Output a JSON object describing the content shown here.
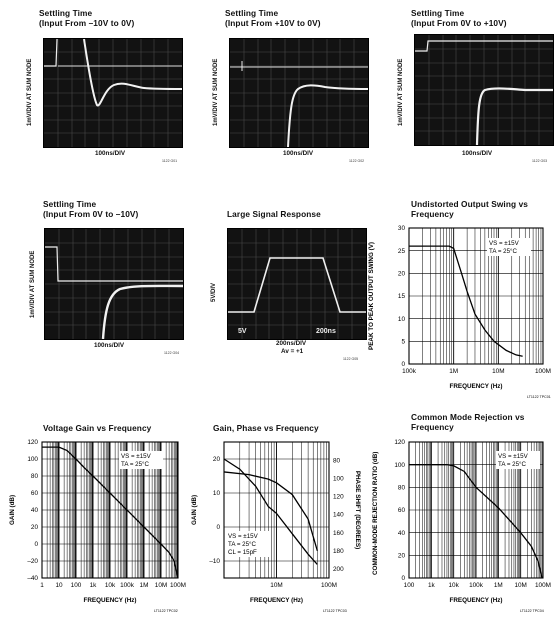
{
  "scopes": [
    {
      "title1": "Settling Time",
      "title2": "(Input From –10V to 0V)",
      "ylabel": "1mV/DIV AT SUM NODE",
      "xlabel": "100ns/DIV",
      "code": "1122 G01"
    },
    {
      "title1": "Settling Time",
      "title2": "(Input From +10V to 0V)",
      "ylabel": "1mV/DIV AT SUM NODE",
      "xlabel": "100ns/DIV",
      "code": "1122 G02"
    },
    {
      "title1": "Settling Time",
      "title2": "(Input From 0V to +10V)",
      "ylabel": "1mV/DIV AT SUM NODE",
      "xlabel": "100ns/DIV",
      "code": "1122 G03"
    },
    {
      "title1": "Settling Time",
      "title2": "(Input From 0V to –10V)",
      "ylabel": "1mV/DIV AT SUM NODE",
      "xlabel": "100ns/DIV",
      "code": "1122 G04"
    },
    {
      "title1": "Large Signal Response",
      "title2": "",
      "ylabel": "5V/DIV",
      "xlabel": "200ns/DIV",
      "xlabel2": "Av = +1",
      "code": "1122 G05",
      "inner_left": "5V",
      "inner_right": "200ns"
    }
  ],
  "chart_data": [
    {
      "type": "line",
      "title": "Undistorted Output Swing vs Frequency",
      "xlabel": "FREQUENCY (Hz)",
      "ylabel": "PEAK TO PEAK OUTPUT SWING (V)",
      "x_scale": "log",
      "xlim": [
        100000,
        100000000
      ],
      "ylim": [
        0,
        30
      ],
      "x_ticks": [
        "100k",
        "1M",
        "10M",
        "100M"
      ],
      "y_ticks": [
        "0",
        "5",
        "10",
        "15",
        "20",
        "25",
        "30"
      ],
      "annotations": [
        "VS = ±15V",
        "TA = 25°C"
      ],
      "code": "LT1122 TPC01",
      "series": [
        {
          "x": [
            100000,
            300000,
            800000,
            1000000,
            1500000,
            2000000,
            3000000,
            5000000,
            8000000,
            15000000,
            25000000,
            35000000
          ],
          "y": [
            26,
            26,
            26,
            25.5,
            20,
            16,
            11,
            7.5,
            5,
            3,
            2,
            1.7
          ]
        }
      ]
    },
    {
      "type": "line",
      "title": "Voltage Gain vs Frequency",
      "xlabel": "FREQUENCY (Hz)",
      "ylabel": "GAIN (dB)",
      "x_scale": "log",
      "xlim": [
        1,
        100000000
      ],
      "ylim": [
        -40,
        120
      ],
      "x_ticks": [
        "1",
        "10",
        "100",
        "1k",
        "10k",
        "100k",
        "1M",
        "10M",
        "100M"
      ],
      "y_ticks": [
        "–40",
        "–20",
        "0",
        "20",
        "40",
        "60",
        "80",
        "100",
        "120"
      ],
      "annotations": [
        "VS = ±15V",
        "TA = 25°C"
      ],
      "code": "LT1122 TPC02",
      "series": [
        {
          "x": [
            1,
            10,
            30,
            100,
            300,
            1000,
            10000,
            100000,
            1000000,
            10000000,
            30000000,
            60000000,
            100000000
          ],
          "y": [
            114,
            114,
            110,
            100,
            90,
            80,
            60,
            40,
            20,
            0,
            -10,
            -20,
            -40
          ]
        }
      ]
    },
    {
      "type": "line",
      "title": "Gain, Phase vs Frequency",
      "xlabel": "FREQUENCY (Hz)",
      "ylabel": "GAIN (dB)",
      "ylabel_right": "PHASE SHIFT (DEGREES)",
      "x_scale": "log",
      "xlim": [
        1000000,
        100000000
      ],
      "ylim": [
        -15,
        25
      ],
      "x_ticks": [
        "10M",
        "100M"
      ],
      "y_ticks": [
        "–10",
        "0",
        "10",
        "20"
      ],
      "y2_ticks": [
        "80",
        "100",
        "120",
        "140",
        "160",
        "180",
        "200"
      ],
      "annotations": [
        "VS = ±15V",
        "TA = 25°C",
        "CL = 15pF"
      ],
      "code": "LT1122 TPC03",
      "series": [
        {
          "x": [
            1000000,
            2000000,
            4000000,
            7000000,
            10000000,
            20000000,
            40000000,
            60000000
          ],
          "y": [
            20,
            17,
            12,
            6,
            4,
            -2,
            -8,
            -11
          ]
        },
        {
          "x": [
            1000000,
            3000000,
            7000000,
            10000000,
            20000000,
            40000000,
            60000000
          ],
          "y2": [
            93,
            96,
            101,
            105,
            118,
            145,
            180
          ]
        }
      ]
    },
    {
      "type": "line",
      "title": "Common Mode Rejection vs Frequency",
      "xlabel": "FREQUENCY (Hz)",
      "ylabel": "COMMON-MODE REJECTION RATIO (dB)",
      "x_scale": "log",
      "xlim": [
        100,
        100000000
      ],
      "ylim": [
        0,
        120
      ],
      "x_ticks": [
        "100",
        "1k",
        "10k",
        "100k",
        "1M",
        "10M",
        "100M"
      ],
      "y_ticks": [
        "0",
        "20",
        "40",
        "60",
        "80",
        "100",
        "120"
      ],
      "annotations": [
        "VS = ±15V",
        "TA = 25°C"
      ],
      "code": "LT1122 TPC04",
      "series": [
        {
          "x": [
            100,
            1000,
            5000,
            10000,
            30000,
            100000,
            1000000,
            10000000,
            30000000,
            60000000,
            90000000
          ],
          "y": [
            100,
            100,
            100,
            99,
            94,
            80,
            62,
            40,
            28,
            15,
            0
          ]
        }
      ]
    }
  ]
}
